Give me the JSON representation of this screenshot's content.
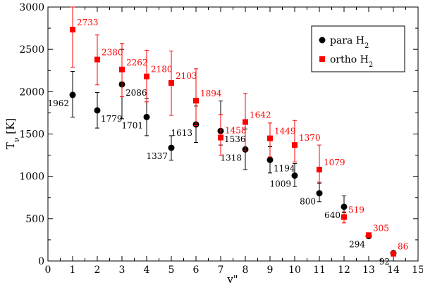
{
  "chart_data": {
    "type": "scatter",
    "title": "",
    "xlabel": "v\"",
    "ylabel": "T_v [K]",
    "xlim": [
      0,
      15
    ],
    "ylim": [
      0,
      3000
    ],
    "x_ticks": [
      0,
      1,
      2,
      3,
      4,
      5,
      6,
      7,
      8,
      9,
      10,
      11,
      12,
      13,
      14,
      15
    ],
    "y_ticks": [
      0,
      500,
      1000,
      1500,
      2000,
      2500,
      3000
    ],
    "grid": false,
    "legend_position": "top-right",
    "series": [
      {
        "name": "para H2",
        "name_base": "para H",
        "name_sub": "2",
        "marker": "circle",
        "color": "#000000",
        "label_color": "#000000",
        "x": [
          1,
          2,
          3,
          4,
          5,
          6,
          7,
          8,
          9,
          10,
          11,
          12,
          13,
          14
        ],
        "y": [
          1962,
          1779,
          2086,
          1701,
          1337,
          1613,
          1536,
          1318,
          1194,
          1009,
          800,
          640,
          294,
          92
        ],
        "err_low": [
          1700,
          1570,
          1680,
          1480,
          1190,
          1400,
          1370,
          1080,
          1040,
          880,
          700,
          570,
          270,
          80
        ],
        "err_high": [
          2240,
          1990,
          2500,
          1920,
          1480,
          1830,
          1890,
          1560,
          1350,
          1150,
          920,
          770,
          320,
          100
        ],
        "labels": [
          "1962",
          "1779",
          "2086",
          "1701",
          "1337",
          "1613",
          "1536",
          "1318",
          "1194",
          "1009",
          "800",
          "640",
          "294",
          "92"
        ],
        "label_side": [
          "left",
          "right",
          "right",
          "left",
          "left",
          "left",
          "right",
          "left",
          "right",
          "left",
          "left",
          "left",
          "left",
          "left"
        ]
      },
      {
        "name": "ortho H2",
        "name_base": "ortho H",
        "name_sub": "2",
        "marker": "square",
        "color": "#ff0000",
        "label_color": "#ff0000",
        "x": [
          1,
          2,
          3,
          4,
          5,
          6,
          7,
          8,
          9,
          10,
          11,
          12,
          13,
          14
        ],
        "y": [
          2733,
          2380,
          2262,
          2180,
          2103,
          1894,
          1458,
          1642,
          1449,
          1370,
          1079,
          519,
          305,
          86
        ],
        "err_low": [
          2290,
          2080,
          1940,
          1880,
          1720,
          1600,
          1250,
          1300,
          1230,
          1170,
          930,
          450,
          290,
          80
        ],
        "err_high": [
          3000,
          2670,
          2570,
          2490,
          2480,
          2270,
          1730,
          1980,
          1630,
          1660,
          1370,
          580,
          320,
          95
        ],
        "labels": [
          "2733",
          "2380",
          "2262",
          "2180",
          "2103",
          "1894",
          "1458",
          "1642",
          "1449",
          "1370",
          "1079",
          "519",
          "305",
          "86"
        ],
        "label_side": [
          "right",
          "right",
          "right",
          "right",
          "right",
          "right",
          "right",
          "right",
          "right",
          "right",
          "right",
          "right",
          "right",
          "right"
        ]
      }
    ]
  }
}
